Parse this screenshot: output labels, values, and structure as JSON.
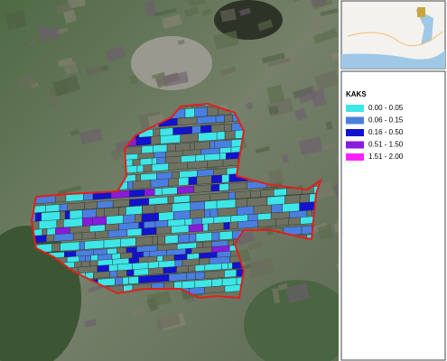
{
  "legend": {
    "title": "KAKS",
    "items": [
      {
        "label": "0.00 - 0.05",
        "color": "#3ee6e8"
      },
      {
        "label": "0.06 - 0.15",
        "color": "#4a7fe0"
      },
      {
        "label": "0.16 - 0.50",
        "color": "#1212cf"
      },
      {
        "label": "0.51 - 1.50",
        "color": "#8a1adc"
      },
      {
        "label": "1.51 - 2.00",
        "color": "#ff22ff"
      }
    ]
  }
}
